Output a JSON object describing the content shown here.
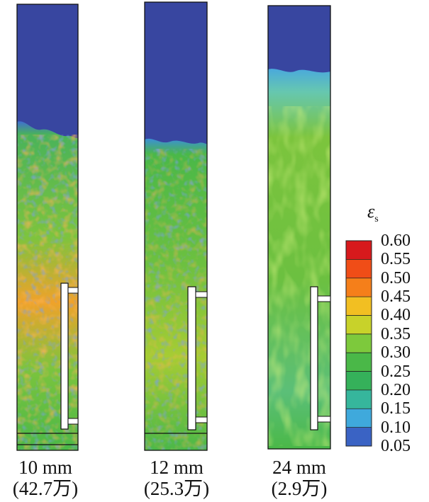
{
  "colorbar": {
    "symbol": "ε",
    "subscript": "s",
    "ticks": [
      "0.60",
      "0.55",
      "0.50",
      "0.45",
      "0.40",
      "0.35",
      "0.30",
      "0.25",
      "0.20",
      "0.15",
      "0.10",
      "0.05"
    ],
    "colors": [
      "#d7191c",
      "#f04d17",
      "#f57f1a",
      "#f2bf22",
      "#c8d22a",
      "#7dc93c",
      "#4ab848",
      "#35b15a",
      "#36b69c",
      "#3fa9dc",
      "#3a63c4",
      "#3846a0"
    ]
  },
  "panels": [
    {
      "size": "10 mm",
      "count": "(42.7万)"
    },
    {
      "size": "12 mm",
      "count": "(25.3万)"
    },
    {
      "size": "24 mm",
      "count": "(2.9万)"
    }
  ]
}
